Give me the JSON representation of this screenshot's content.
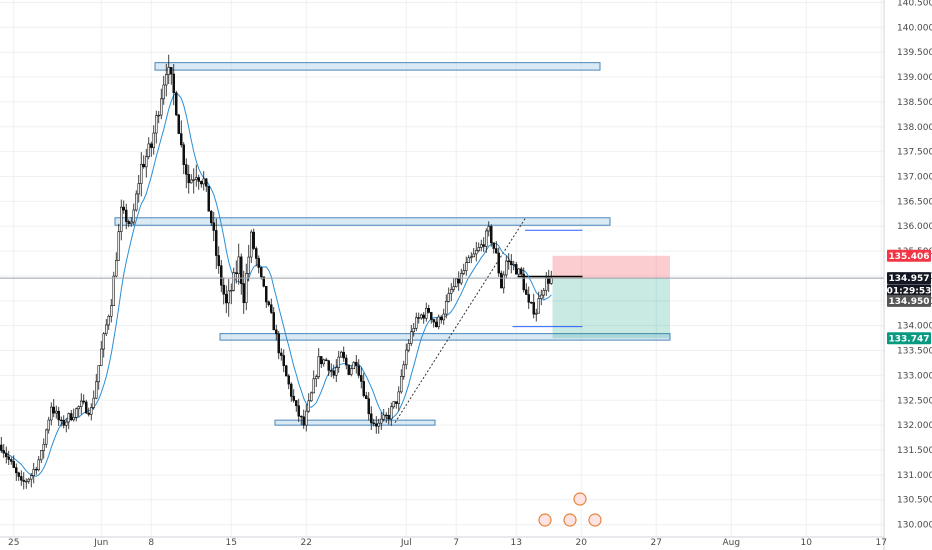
{
  "chart_data": {
    "type": "candlestick",
    "y_ticks": [
      "130.000",
      "130.500",
      "131.000",
      "131.500",
      "132.000",
      "132.500",
      "133.000",
      "133.500",
      "134.000",
      "134.500",
      "135.000",
      "135.500",
      "136.000",
      "136.500",
      "137.000",
      "137.500",
      "138.000",
      "138.500",
      "139.000",
      "139.500",
      "140.000",
      "140.500"
    ],
    "ylim": [
      129.75,
      140.55
    ],
    "x_ticks": [
      "25",
      "Jun",
      "8",
      "15",
      "22",
      "Jul",
      "7",
      "13",
      "20",
      "27",
      "Aug",
      "10",
      "17"
    ],
    "x_tick_bar_index": [
      5,
      40,
      60,
      92,
      122,
      162,
      182,
      206,
      232,
      262,
      292,
      322,
      352
    ],
    "bars_total": 375,
    "grid": true,
    "price_tags": [
      {
        "name": "target-tag",
        "value": "135.406",
        "price": 135.406,
        "color": "#f23645"
      },
      {
        "name": "last-price-tag",
        "value": "134.957",
        "price": 134.957,
        "color": "#131722"
      },
      {
        "name": "countdown-tag",
        "value": "01:29:53",
        "price": 134.71,
        "color": "#131722"
      },
      {
        "name": "current-price-tag",
        "value": "134.950",
        "price": 134.5,
        "color": "#555555"
      },
      {
        "name": "stop-tag",
        "value": "133.747",
        "price": 133.747,
        "color": "#089981"
      }
    ],
    "zones": [
      {
        "name": "resistance-zone-top",
        "from_bar": 62,
        "to_bar": 240,
        "low": 139.14,
        "high": 139.29
      },
      {
        "name": "resistance-zone-mid",
        "from_bar": 46,
        "to_bar": 244,
        "low": 136.02,
        "high": 136.17
      },
      {
        "name": "support-zone-mid",
        "from_bar": 88,
        "to_bar": 268,
        "low": 133.71,
        "high": 133.84
      },
      {
        "name": "support-zone-low",
        "from_bar": 110,
        "to_bar": 174,
        "low": 132.02,
        "high": 132.1
      }
    ],
    "position": {
      "entry": 134.957,
      "target": 135.406,
      "stop": 133.747,
      "from_bar": 221,
      "to_bar": 268
    },
    "ohlc": [],
    "ma": []
  }
}
